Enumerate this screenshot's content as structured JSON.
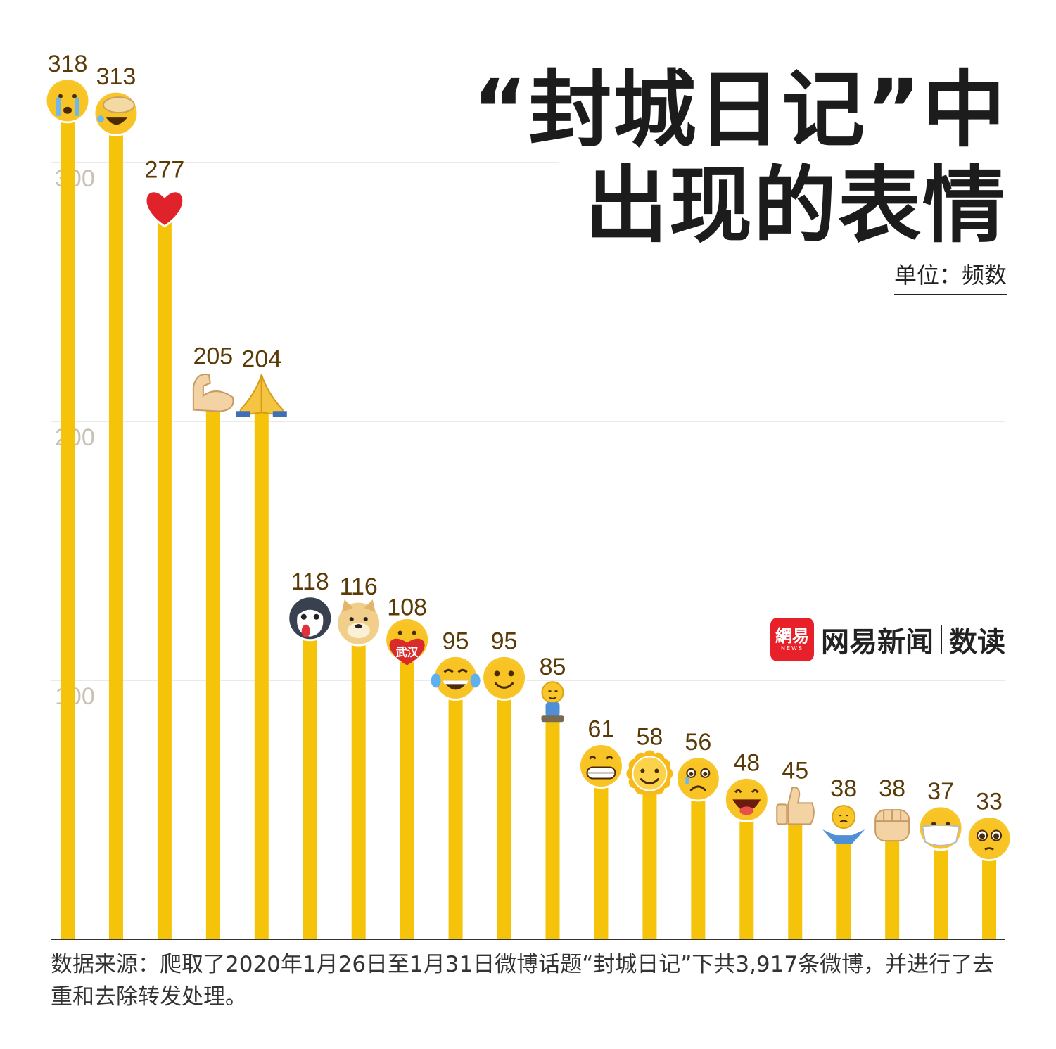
{
  "title_line1": "“封城日记”中",
  "title_line2": "出现的表情",
  "unit": "单位：频数",
  "brand": {
    "logo_text": "網易",
    "logo_sub": "NEWS",
    "name": "网易新闻",
    "sub": "数读"
  },
  "source": "数据来源：爬取了2020年1月26日至1月31日微博话题“封城日记”下共3,917条微博，并进行了去重和去除转发处理。",
  "colors": {
    "bar": "#f5c40a",
    "label": "#5a3a06",
    "grid": "#e4e4e4",
    "tick": "#c9c2b4",
    "axis": "#333333"
  },
  "chart_data": {
    "type": "bar",
    "title": "“封城日记”中出现的表情",
    "ylabel": "单位：频数",
    "ylim": [
      0,
      318
    ],
    "yticks": [
      100,
      200,
      300
    ],
    "grid": true,
    "categories": [
      "crying-face-icon",
      "facepalm-laughing-icon",
      "red-heart-icon",
      "flexed-biceps-icon",
      "folded-hands-icon",
      "husky-dog-icon",
      "doge-icon",
      "wuhan-heart-icon",
      "tears-of-joy-icon",
      "smiling-face-icon",
      "kneeling-person-icon",
      "grinning-teeth-icon",
      "sun-face-icon",
      "sad-face-icon",
      "big-laugh-icon",
      "thumbs-up-icon",
      "shrug-icon",
      "fist-icon",
      "mask-face-icon",
      "pleading-face-icon"
    ],
    "values": [
      318,
      313,
      277,
      205,
      204,
      118,
      116,
      108,
      95,
      95,
      85,
      61,
      58,
      56,
      48,
      45,
      38,
      38,
      37,
      33
    ]
  }
}
